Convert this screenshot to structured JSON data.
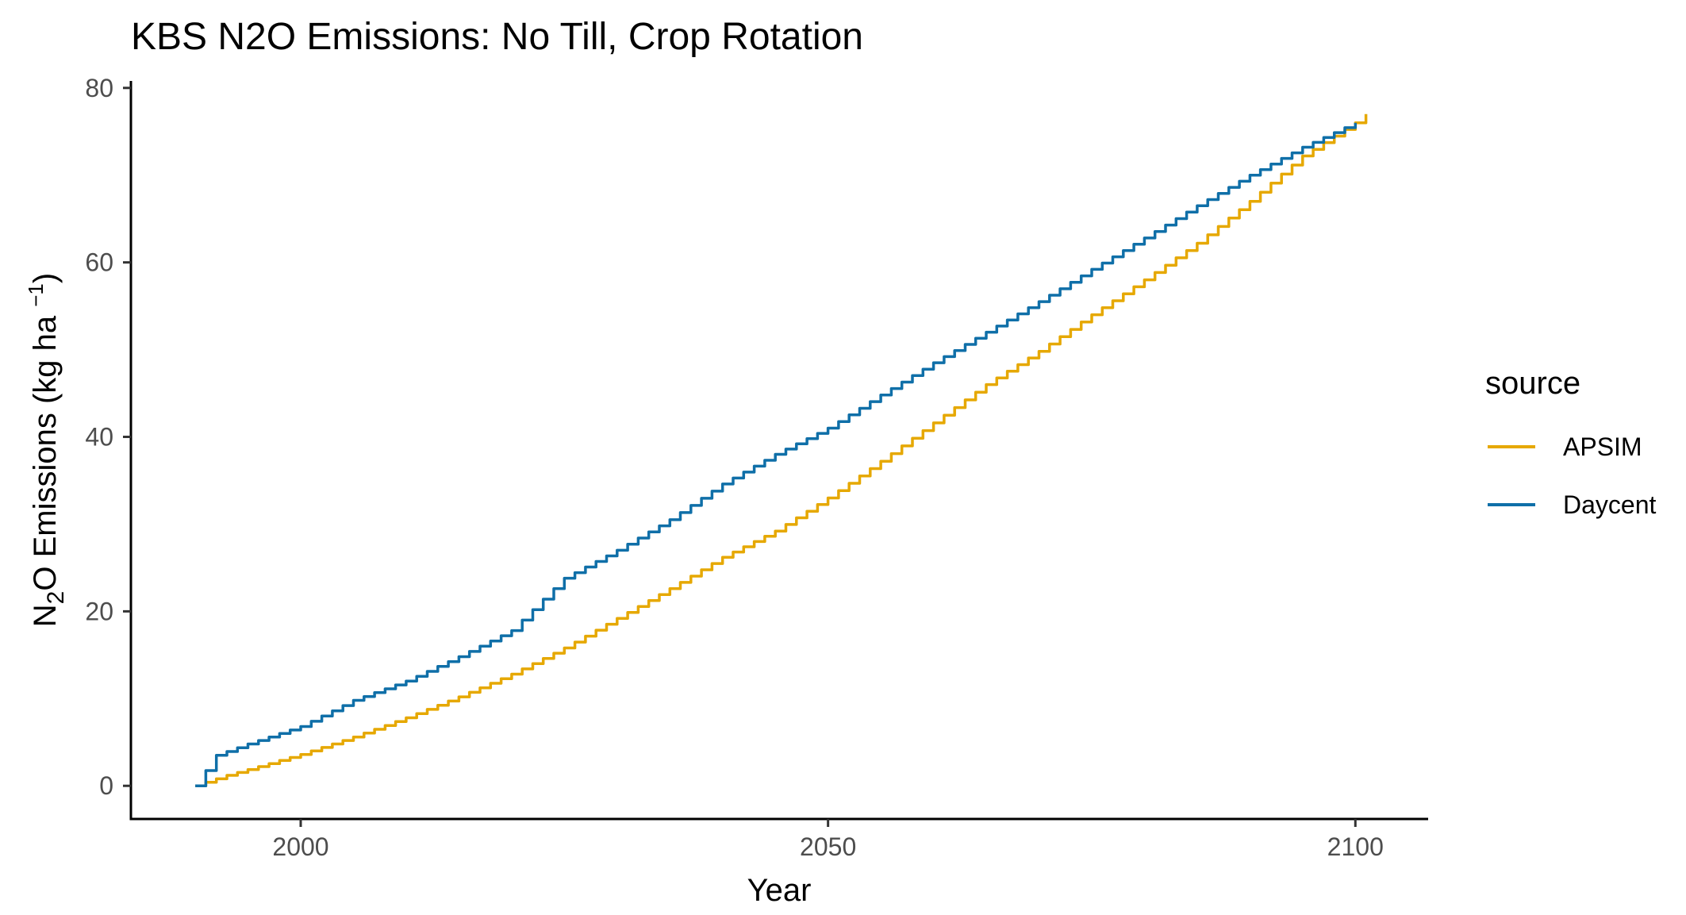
{
  "chart_data": {
    "type": "line",
    "title": "KBS N2O Emissions:  No Till, Crop Rotation",
    "xlabel": "Year",
    "ylabel": {
      "prefix": "N",
      "subscript": "2",
      "middle": "O Emissions (kg ha ",
      "superscript": "−1",
      "suffix": ")"
    },
    "xlim": [
      1983.9,
      2106.9
    ],
    "ylim": [
      -3.8,
      80.8
    ],
    "x_ticks": [
      2000,
      2050,
      2100
    ],
    "x_tick_labels": [
      "2000",
      "2050",
      "2100"
    ],
    "y_ticks": [
      0,
      20,
      40,
      60,
      80
    ],
    "y_tick_labels": [
      "0",
      "20",
      "40",
      "60",
      "80"
    ],
    "grid": false,
    "legend": {
      "title": "source",
      "placement": "right"
    },
    "series": [
      {
        "name": "APSIM",
        "color": "#E6A800",
        "x": [
          1990,
          1993,
          1996,
          2000,
          2005,
          2010,
          2015,
          2020,
          2025,
          2030,
          2035,
          2040,
          2045,
          2050,
          2055,
          2060,
          2065,
          2070,
          2075,
          2080,
          2085,
          2090,
          2095,
          2100,
          2101
        ],
        "y": [
          0,
          1.2,
          2.2,
          3.6,
          5.6,
          7.8,
          10.2,
          12.8,
          15.8,
          19.2,
          22.6,
          26.2,
          29.2,
          33.0,
          37.2,
          41.6,
          46.0,
          49.8,
          54.0,
          58.0,
          62.2,
          67.0,
          72.2,
          76.0,
          77.0
        ]
      },
      {
        "name": "Daycent",
        "color": "#0F6FA8",
        "x": [
          1990,
          1992,
          1995,
          2000,
          2005,
          2010,
          2015,
          2020,
          2025,
          2030,
          2035,
          2040,
          2045,
          2050,
          2055,
          2060,
          2065,
          2070,
          2075,
          2080,
          2085,
          2090,
          2095,
          2100
        ],
        "y": [
          0,
          3.5,
          4.8,
          6.8,
          9.8,
          12.0,
          14.8,
          17.8,
          23.8,
          27.0,
          30.5,
          34.6,
          38.0,
          41.0,
          44.8,
          48.5,
          52.0,
          55.5,
          59.2,
          62.8,
          66.5,
          70.0,
          73.2,
          76.0
        ]
      }
    ]
  }
}
